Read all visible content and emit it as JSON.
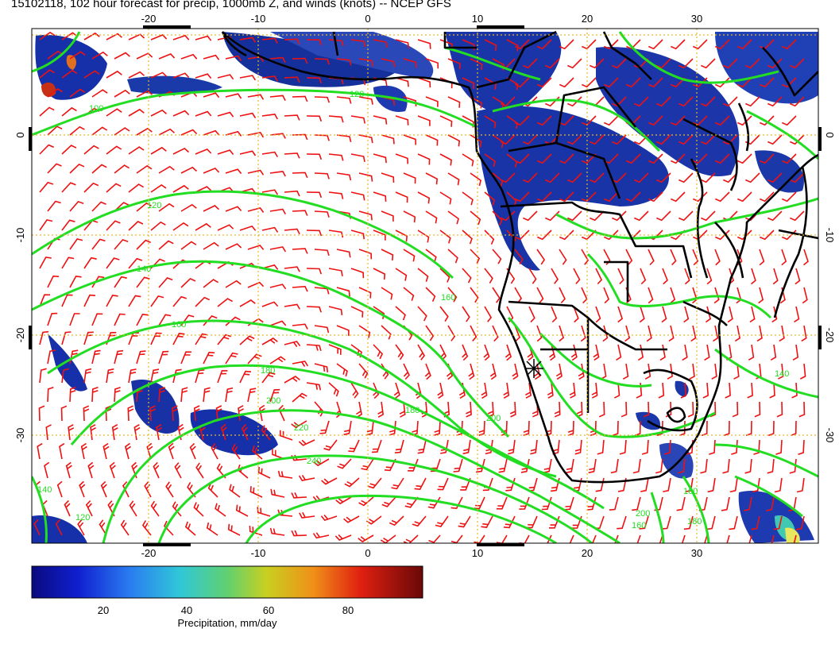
{
  "title": "15102118, 102 hour forecast for precip, 1000mb Z, and winds (knots) -- NCEP GFS",
  "map": {
    "lon_ticks": [
      "-20",
      "-10",
      "0",
      "10",
      "20",
      "30"
    ],
    "lat_ticks": [
      "0",
      "-10",
      "-20",
      "-30"
    ],
    "lon_range": [
      -30,
      40
    ],
    "lat_range": [
      -40,
      10
    ],
    "contour_labels": [
      "100",
      "120",
      "140",
      "160",
      "180",
      "200",
      "220",
      "240",
      "120",
      "140",
      "160",
      "180",
      "200",
      "160",
      "140",
      "160",
      "180",
      "200",
      "120"
    ],
    "contour_color": "#22dd22",
    "barb_color": "#ee1111",
    "coast_color": "#000000",
    "grid_color": "#e8b82a"
  },
  "colorbar": {
    "ticks": [
      "20",
      "40",
      "60",
      "80"
    ],
    "label": "Precipitation, mm/day",
    "range": [
      0,
      100
    ]
  }
}
